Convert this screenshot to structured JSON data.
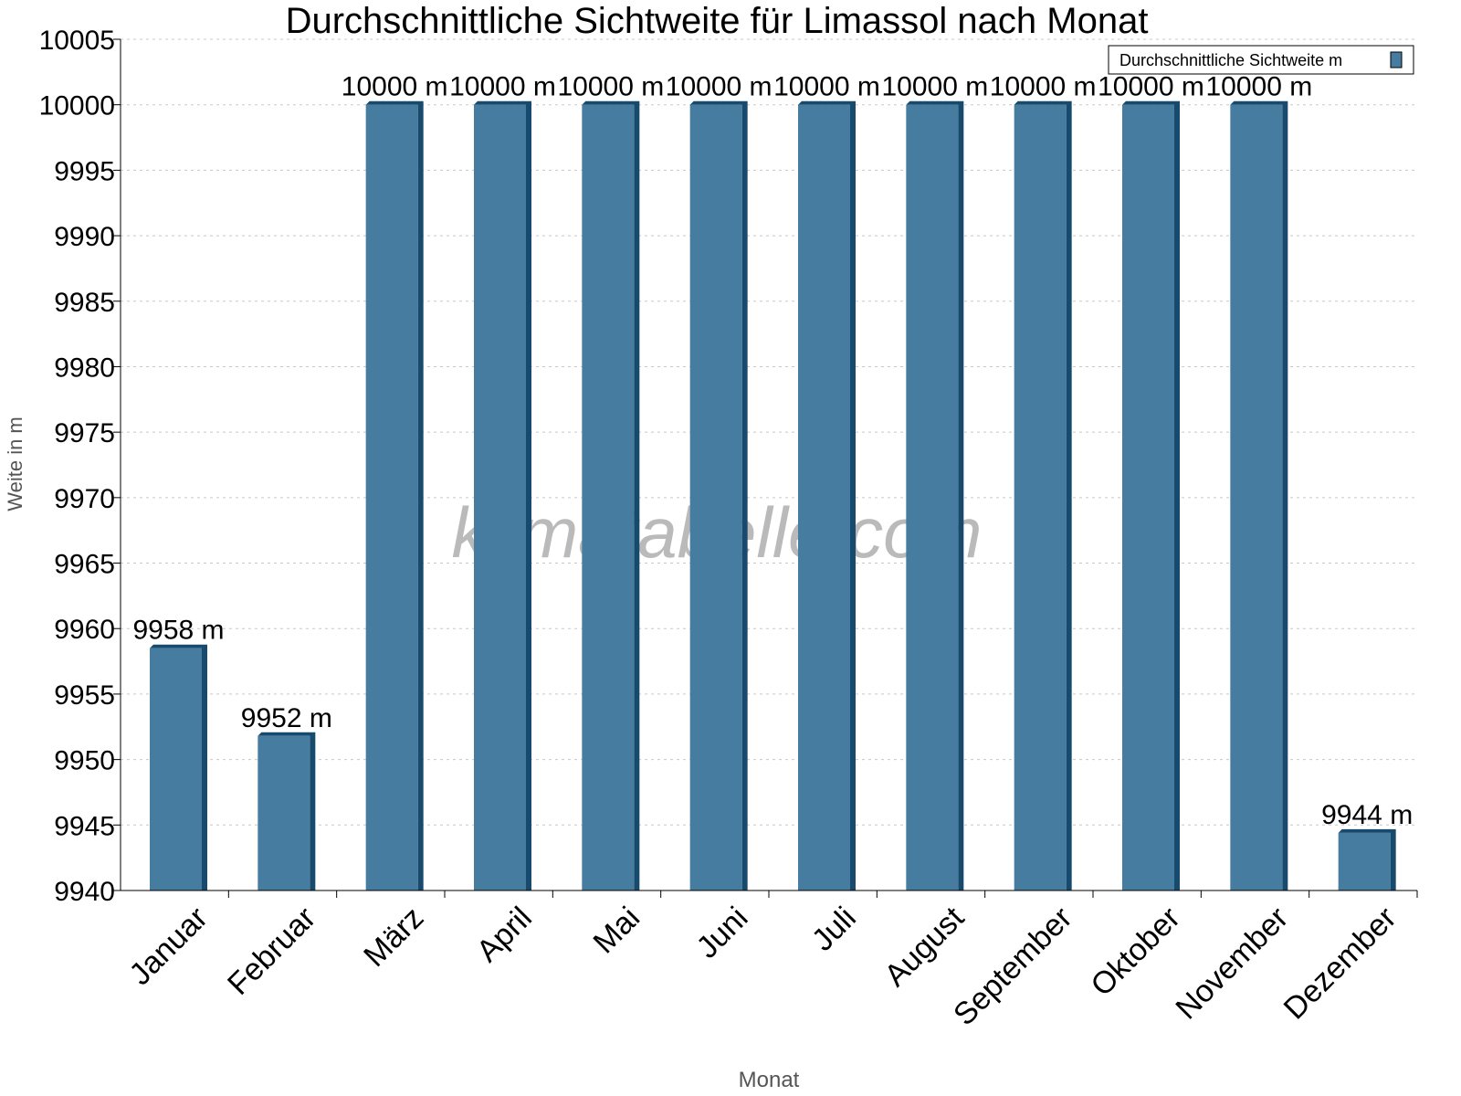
{
  "chart_data": {
    "type": "bar",
    "title": "Durchschnittliche Sichtweite für Limassol nach Monat",
    "xlabel": "Monat",
    "ylabel": "Weite in m",
    "ylim": [
      9940,
      10005
    ],
    "yticks": [
      9940,
      9945,
      9950,
      9955,
      9960,
      9965,
      9970,
      9975,
      9980,
      9985,
      9990,
      9995,
      10000,
      10005
    ],
    "grid": true,
    "legend_position": "top-right",
    "categories": [
      "Januar",
      "Februar",
      "März",
      "April",
      "Mai",
      "Juni",
      "Juli",
      "August",
      "September",
      "Oktober",
      "November",
      "Dezember"
    ],
    "series": [
      {
        "name": "Durchschnittliche Sichtweite m",
        "values": [
          9958.5,
          9951.8,
          10000,
          10000,
          10000,
          10000,
          10000,
          10000,
          10000,
          10000,
          10000,
          9944.4
        ],
        "labels": [
          "9958 m",
          "9952 m",
          "10000 m",
          "10000 m",
          "10000 m",
          "10000 m",
          "10000 m",
          "10000 m",
          "10000 m",
          "10000 m",
          "10000 m",
          "9944 m"
        ]
      }
    ],
    "colors": {
      "bar_face": "#467ca0",
      "bar_side": "#174a6c",
      "grid": "#c8c8c8"
    },
    "watermark": "klimatabelle.com"
  }
}
